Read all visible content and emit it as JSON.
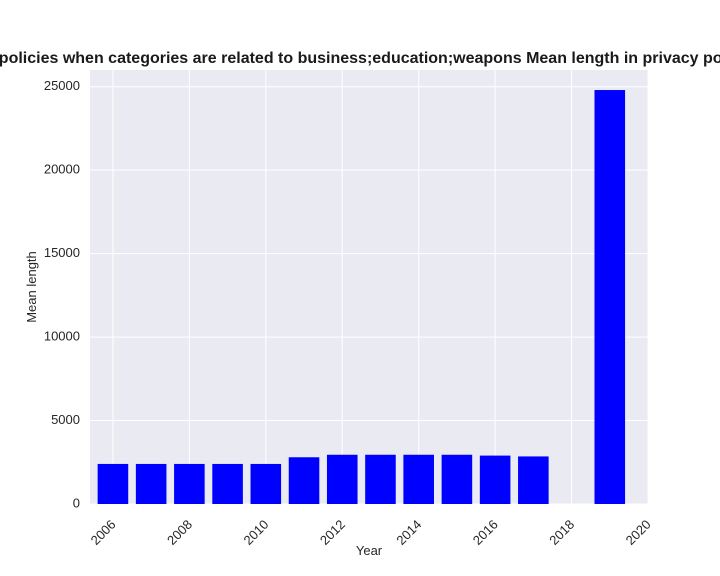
{
  "chart_data": {
    "type": "bar",
    "title": "Number of policies when categories are related to business;education;weapons Mean length in privacy policies by Year",
    "xlabel": "Year",
    "ylabel": "Mean length",
    "x": [
      2006,
      2007,
      2008,
      2009,
      2010,
      2011,
      2012,
      2013,
      2014,
      2015,
      2016,
      2017,
      2019
    ],
    "values": [
      2400,
      2400,
      2400,
      2400,
      2400,
      2800,
      2950,
      2950,
      2950,
      2950,
      2900,
      2850,
      24800
    ],
    "xlim": [
      2005.4,
      2020.0
    ],
    "ylim": [
      0,
      26000
    ],
    "xticks": [
      2006,
      2008,
      2010,
      2012,
      2014,
      2016,
      2018,
      2020
    ],
    "yticks": [
      0,
      5000,
      10000,
      15000,
      20000,
      25000
    ],
    "bar_color": "#0000ff",
    "grid": true,
    "background": "#eaeaf2"
  }
}
